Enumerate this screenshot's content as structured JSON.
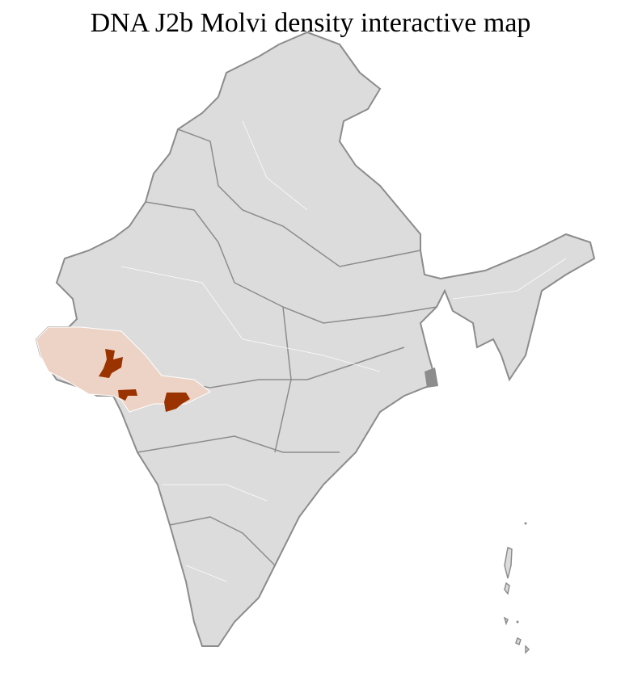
{
  "title": "DNA J2b Molvi density interactive map",
  "colors": {
    "base_fill": "#dcdcdc",
    "border": "#8c8c8c",
    "district_lines": "#ffffff",
    "low_density": "#ecd3c6",
    "high_density": "#9a3300"
  },
  "legend": null
}
